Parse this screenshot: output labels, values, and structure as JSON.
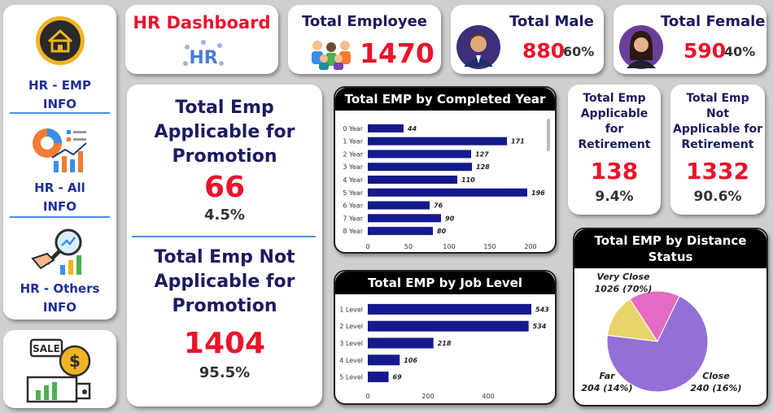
{
  "sidebar": {
    "items": [
      {
        "label_line1": "HR - EMP",
        "label_line2": "INFO",
        "icon": "home-icon"
      },
      {
        "label_line1": "HR - All",
        "label_line2": "INFO",
        "icon": "analytics-icon"
      },
      {
        "label_line1": "HR - Others",
        "label_line2": "INFO",
        "icon": "magnifier-chart-icon"
      }
    ],
    "bottom_icon": "sale-icon",
    "bottom_icon_text": "SALE"
  },
  "header": {
    "title": "HR Dashboard",
    "logo_text": "HR"
  },
  "kpis": {
    "total_employee": {
      "label": "Total Employee",
      "value": "1470"
    },
    "total_male": {
      "label": "Total Male",
      "value": "880",
      "pct": "60%"
    },
    "total_female": {
      "label": "Total Female",
      "value": "590",
      "pct": "40%"
    }
  },
  "promotion": {
    "applicable": {
      "label_lines": [
        "Total Emp",
        "Applicable for",
        "Promotion"
      ],
      "value": "66",
      "pct": "4.5%"
    },
    "not_applicable": {
      "label_lines": [
        "Total Emp Not",
        "Applicable for",
        "Promotion"
      ],
      "value": "1404",
      "pct": "95.5%"
    }
  },
  "retirement": {
    "applicable": {
      "label_lines": [
        "Total Emp",
        "Applicable",
        "for",
        "Retirement"
      ],
      "value": "138",
      "pct": "9.4%"
    },
    "not_applicable": {
      "label_lines": [
        "Total Emp",
        "Not",
        "Applicable for",
        "Retirement"
      ],
      "value": "1332",
      "pct": "90.6%"
    }
  },
  "colors": {
    "bar": "#141a8c",
    "accent_red": "#e8142b",
    "navy_text": "#1b1b5e",
    "pie_very_close": "#9370d6",
    "pie_far": "#e8d46a",
    "pie_close": "#e46bc3"
  },
  "chart_data": [
    {
      "type": "bar",
      "orientation": "horizontal",
      "title": "Total EMP by Completed Year",
      "categories": [
        "0 Year",
        "1 Year",
        "2 Year",
        "3 Year",
        "4 Year",
        "5 Year",
        "6 Year",
        "7 Year",
        "8 Year"
      ],
      "values": [
        44,
        171,
        127,
        128,
        110,
        196,
        76,
        90,
        80
      ],
      "xticks": [
        "0",
        "50",
        "100",
        "150",
        "200"
      ],
      "xlim": [
        0,
        200
      ],
      "grid": false
    },
    {
      "type": "bar",
      "orientation": "horizontal",
      "title": "Total EMP by Job Level",
      "categories": [
        "1 Level",
        "2 Level",
        "3 Level",
        "4 Level",
        "5 Level"
      ],
      "values": [
        543,
        534,
        218,
        106,
        69
      ],
      "xticks": [
        "0",
        "200",
        "400"
      ],
      "xlim": [
        0,
        570
      ],
      "grid": false
    },
    {
      "type": "pie",
      "title": "Total EMP by Distance Status",
      "categories": [
        "Very Close",
        "Far",
        "Close"
      ],
      "values": [
        1026,
        204,
        240
      ],
      "labels": [
        "1026 (70%)",
        "204 (14%)",
        "240 (16%)"
      ]
    }
  ]
}
